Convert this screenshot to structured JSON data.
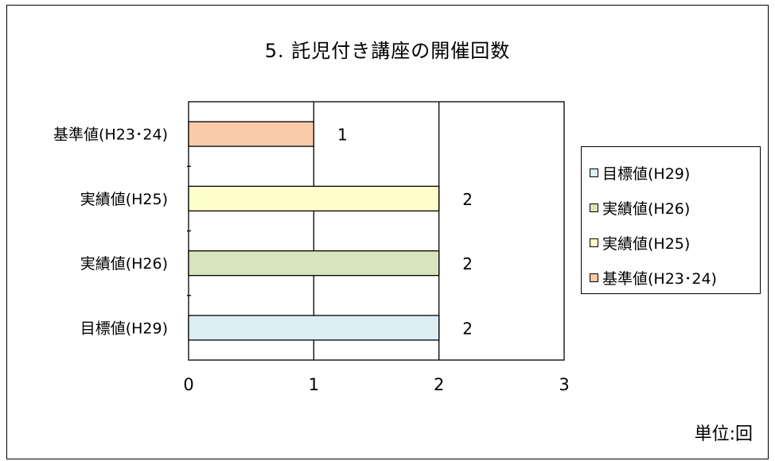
{
  "chart_data": {
    "type": "bar",
    "orientation": "horizontal",
    "title": "5. 託児付き講座の開催回数",
    "unit_label": "単位:回",
    "categories": [
      "基準値(H23･24)",
      "実績値(H25)",
      "実績値(H26)",
      "目標値(H29)"
    ],
    "values": [
      1,
      2,
      2,
      2
    ],
    "data_labels": [
      "1",
      "2",
      "2",
      "2"
    ],
    "colors": [
      "#f9cba8",
      "#ffffcc",
      "#d8e4bc",
      "#daeef3"
    ],
    "xlim": [
      0,
      3
    ],
    "xticks": [
      "0",
      "1",
      "2",
      "3"
    ],
    "grid": true,
    "legend_position": "right",
    "legend": [
      {
        "label": "目標値(H29)",
        "color": "#daeef3"
      },
      {
        "label": "実績値(H26)",
        "color": "#d8e4bc"
      },
      {
        "label": "実績値(H25)",
        "color": "#ffffcc"
      },
      {
        "label": "基準値(H23･24)",
        "color": "#f9cba8"
      }
    ]
  }
}
